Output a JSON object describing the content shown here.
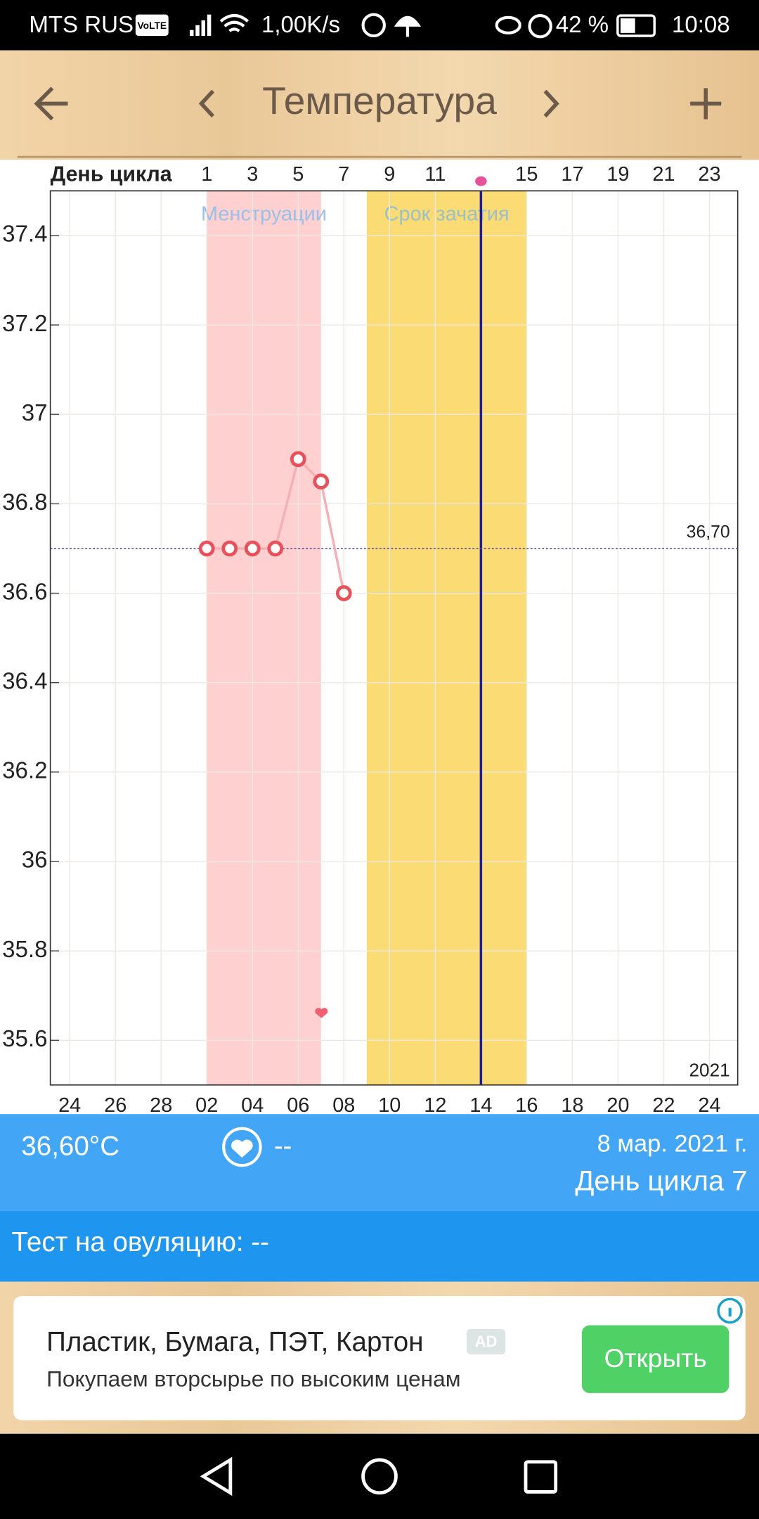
{
  "status_bar": {
    "carrier": "MTS RUS",
    "volte": "VoLTE",
    "speed": "1,00K/s",
    "battery": "42 %",
    "time": "10:08"
  },
  "header": {
    "title": "Температура"
  },
  "chart_data": {
    "type": "line",
    "top_axis_label": "День цикла",
    "categories": [
      "24",
      null,
      "26",
      null,
      "28",
      null,
      "02",
      null,
      "04",
      null,
      "06",
      null,
      "08",
      null,
      "10",
      null,
      "12",
      null,
      "14",
      null,
      "16",
      null,
      "18",
      null,
      "20",
      null,
      "22",
      null,
      "24",
      null
    ],
    "cycle_days": [
      null,
      null,
      null,
      null,
      null,
      null,
      1,
      null,
      3,
      null,
      5,
      null,
      7,
      null,
      9,
      null,
      11,
      null,
      null,
      null,
      15,
      null,
      17,
      null,
      19,
      null,
      21,
      null,
      23,
      null
    ],
    "series": [
      {
        "name": "Температура",
        "color": "#e8505a",
        "values": [
          null,
          null,
          null,
          null,
          null,
          null,
          36.7,
          36.7,
          36.7,
          36.7,
          36.9,
          36.85,
          36.6,
          null,
          null,
          null,
          null,
          null,
          null,
          null,
          null,
          null,
          null,
          null,
          null,
          null,
          null,
          null,
          null,
          null
        ]
      }
    ],
    "ylim": [
      35.5,
      37.5
    ],
    "yticks": [
      35.6,
      35.8,
      36,
      36.2,
      36.4,
      36.6,
      36.8,
      37,
      37.2,
      37.4
    ],
    "grid": true,
    "reference_line": {
      "value": 36.7,
      "label": "36,70"
    },
    "bands": [
      {
        "label": "Менструации",
        "from": 6,
        "to": 11,
        "color": "#ffd0d0",
        "label_color": "#9ac0e8"
      },
      {
        "label": "Срок зачатия",
        "from": 13,
        "to": 20,
        "color": "#fadb74",
        "label_color": "#9ac0c8"
      }
    ],
    "marker_line": {
      "index": 18,
      "color": "#1a1aa0"
    },
    "year": "2021"
  },
  "info_panel": {
    "temperature": "36,60°C",
    "heart_value": "--",
    "date": "8 мар. 2021 г.",
    "cycle_day": "День цикла 7"
  },
  "ovulation_test": "Тест на овуляцию: --",
  "ad": {
    "title": "Пластик, Бумага, ПЭТ, Картон",
    "badge": "AD",
    "subtitle": "Покупаем вторсырье по высоким ценам",
    "button": "Открыть"
  }
}
